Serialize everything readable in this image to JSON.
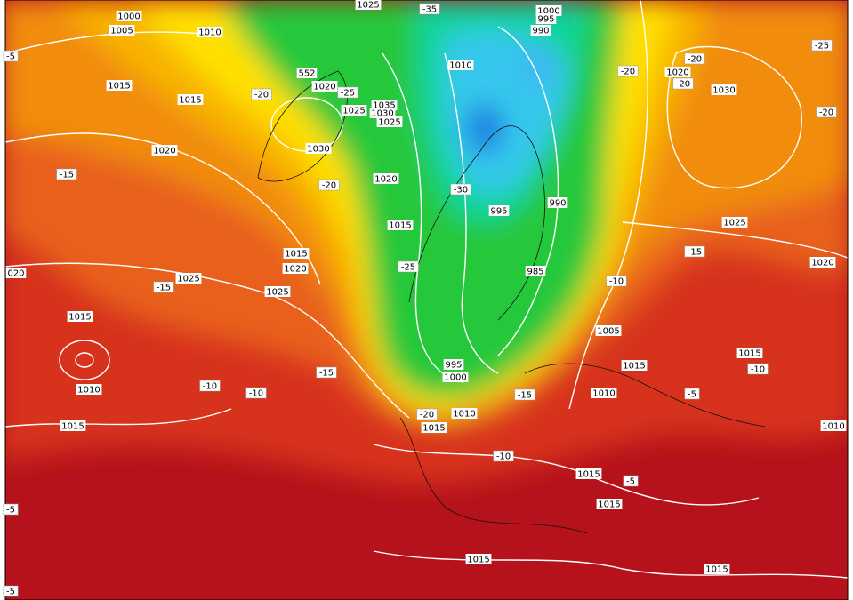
{
  "pressure_labels": [
    "1000",
    "1005",
    "1010",
    "1025",
    "1000",
    "995",
    "990",
    "1010",
    "552",
    "1020",
    "1015",
    "1015",
    "1035",
    "1030",
    "1025",
    "1025",
    "1030",
    "1020",
    "1020",
    "1030",
    "1020",
    "995",
    "990",
    "1015",
    "1025",
    "1015",
    "1020",
    "1025",
    "1025",
    "985",
    "1020",
    "020",
    "1015",
    "1005",
    "1015",
    "995",
    "1000",
    "1010",
    "1010",
    "1015",
    "1010",
    "1015",
    "1015",
    "1010",
    "1015",
    "1015",
    "1015",
    "1015"
  ],
  "temperature_labels": [
    "-35",
    "-20",
    "-25",
    "-15",
    "-20",
    "-30",
    "-25",
    "-15",
    "-15",
    "-10",
    "-10",
    "-20",
    "-20",
    "-20",
    "-25",
    "-20",
    "-15",
    "-10",
    "-15",
    "-20",
    "-10",
    "-5",
    "-5",
    "-10",
    "-5",
    "-5",
    "-5"
  ]
}
